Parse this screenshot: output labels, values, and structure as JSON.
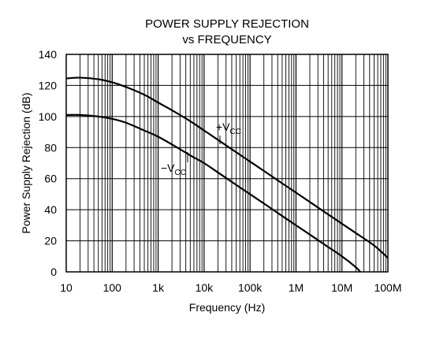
{
  "chart_data": {
    "type": "line",
    "title_line1": "POWER SUPPLY REJECTION",
    "title_line2": "vs FREQUENCY",
    "xlabel": "Frequency (Hz)",
    "ylabel": "Power Supply Rejection (dB)",
    "x_scale": "log",
    "xlim": [
      10,
      100000000
    ],
    "ylim": [
      0,
      140
    ],
    "grid": true,
    "x_ticks": [
      {
        "value": 10,
        "label": "10"
      },
      {
        "value": 100,
        "label": "100"
      },
      {
        "value": 1000,
        "label": "1k"
      },
      {
        "value": 10000,
        "label": "10k"
      },
      {
        "value": 100000,
        "label": "100k"
      },
      {
        "value": 1000000,
        "label": "1M"
      },
      {
        "value": 10000000,
        "label": "10M"
      },
      {
        "value": 100000000,
        "label": "100M"
      }
    ],
    "y_ticks": [
      {
        "value": 0,
        "label": "0"
      },
      {
        "value": 20,
        "label": "20"
      },
      {
        "value": 40,
        "label": "40"
      },
      {
        "value": 60,
        "label": "60"
      },
      {
        "value": 80,
        "label": "80"
      },
      {
        "value": 100,
        "label": "100"
      },
      {
        "value": 120,
        "label": "120"
      },
      {
        "value": 140,
        "label": "140"
      }
    ],
    "series": [
      {
        "label_main": "+V",
        "label_sub": "CC",
        "x": [
          10,
          20,
          50,
          100,
          200,
          500,
          1000,
          2000,
          5000,
          10000,
          20000,
          50000,
          100000,
          200000,
          500000,
          1000000,
          2000000,
          5000000,
          10000000,
          20000000,
          50000000,
          100000000
        ],
        "values": [
          124.5,
          125,
          124,
          122,
          119,
          114,
          109,
          104,
          97,
          91,
          85,
          77,
          71,
          65,
          57,
          51,
          45,
          37,
          31,
          25,
          17,
          9
        ]
      },
      {
        "label_main": "−V",
        "label_sub": "CC",
        "x": [
          10,
          20,
          50,
          100,
          200,
          500,
          1000,
          2000,
          5000,
          10000,
          20000,
          50000,
          100000,
          200000,
          500000,
          1000000,
          2000000,
          5000000,
          10000000,
          20000000,
          25000000
        ],
        "values": [
          101,
          101,
          100,
          98.5,
          96,
          91,
          87,
          82,
          75,
          70,
          64,
          56,
          50,
          44,
          36,
          30,
          24,
          16,
          10,
          3,
          0
        ]
      }
    ]
  }
}
